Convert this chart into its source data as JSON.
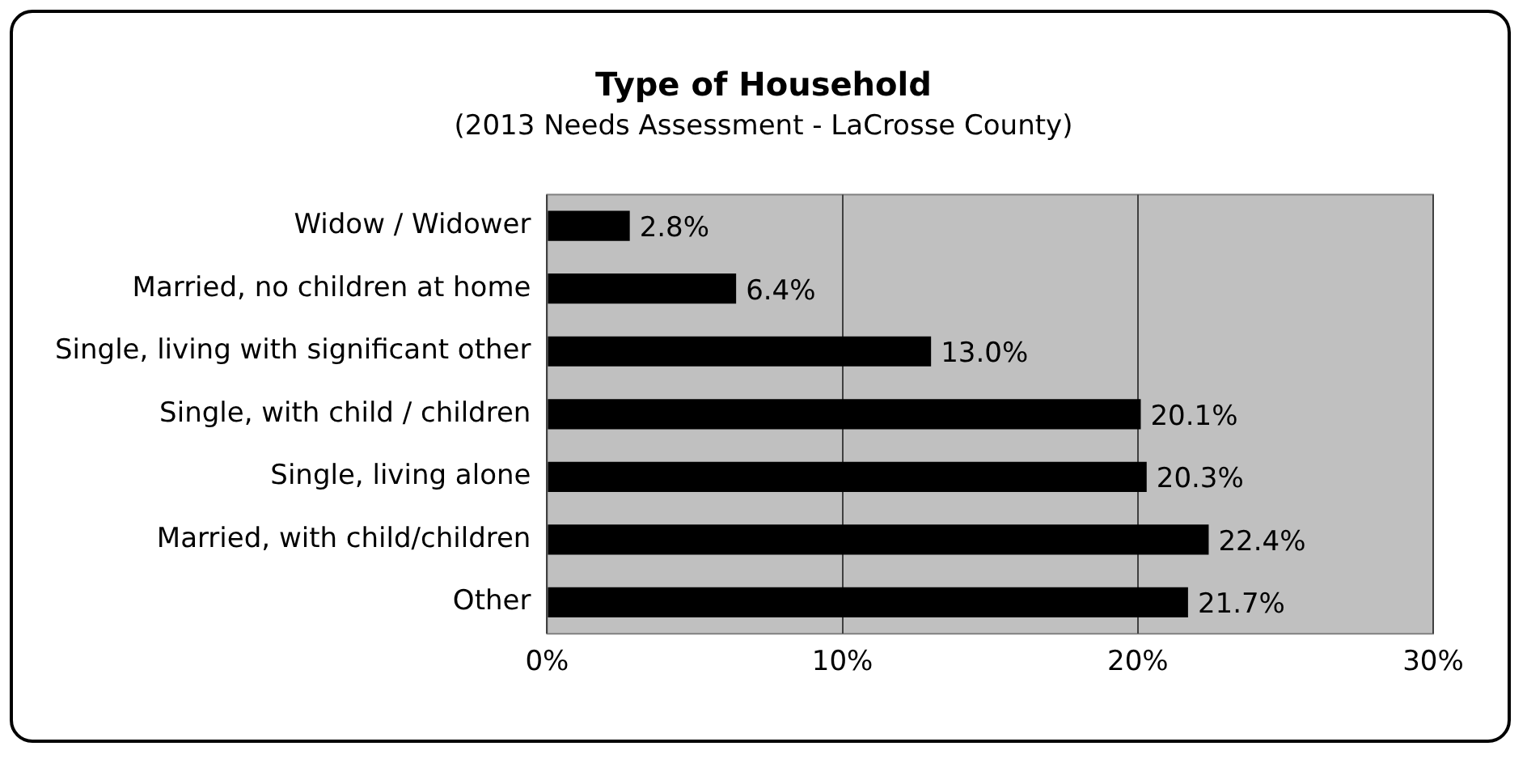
{
  "chart_data": {
    "type": "bar",
    "orientation": "horizontal",
    "title": "Type of Household",
    "subtitle": "(2013 Needs Assessment - LaCrosse County)",
    "categories": [
      "Widow / Widower",
      "Married, no children at home",
      "Single, living with significant other",
      "Single, with child / children",
      "Single, living alone",
      "Married, with child/children",
      "Other"
    ],
    "values": [
      2.8,
      6.4,
      13.0,
      20.1,
      20.3,
      22.4,
      21.7
    ],
    "value_labels": [
      "2.8%",
      "6.4%",
      "13.0%",
      "20.1%",
      "20.3%",
      "22.4%",
      "21.7%"
    ],
    "color": "#000000",
    "xlim": [
      0,
      30
    ],
    "xticks": [
      {
        "value": 0,
        "label": "0%"
      },
      {
        "value": 10,
        "label": "10%"
      },
      {
        "value": 20,
        "label": "20%"
      },
      {
        "value": 30,
        "label": "30%"
      }
    ],
    "grid": "x",
    "legend": false
  }
}
